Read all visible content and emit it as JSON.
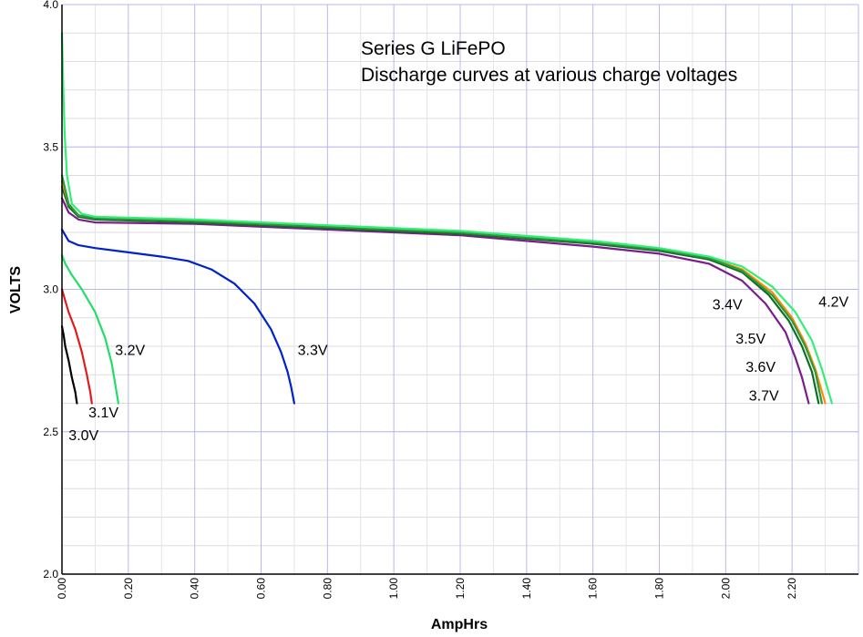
{
  "chart_data": {
    "type": "line",
    "title": "Series G LiFePO",
    "subtitle": "Discharge curves at various charge voltages",
    "xlabel": "AmpHrs",
    "ylabel": "VOLTS",
    "xlim": [
      0,
      2.4
    ],
    "ylim": [
      2.0,
      4.0
    ],
    "x_ticks": [
      "0.00",
      "0.20",
      "0.40",
      "0.60",
      "0.80",
      "1.00",
      "1.20",
      "1.40",
      "1.60",
      "1.80",
      "2.00",
      "2.20"
    ],
    "y_ticks": [
      "2.0",
      "2.5",
      "3.0",
      "3.5",
      "4.0"
    ],
    "grid": true,
    "series": [
      {
        "name": "3.0V",
        "color": "#000000",
        "points": [
          [
            0.0,
            2.87
          ],
          [
            0.005,
            2.84
          ],
          [
            0.01,
            2.8
          ],
          [
            0.02,
            2.75
          ],
          [
            0.03,
            2.69
          ],
          [
            0.04,
            2.64
          ],
          [
            0.045,
            2.6
          ]
        ]
      },
      {
        "name": "3.1V",
        "color": "#e31a1c",
        "points": [
          [
            0.0,
            3.0
          ],
          [
            0.01,
            2.96
          ],
          [
            0.02,
            2.92
          ],
          [
            0.04,
            2.86
          ],
          [
            0.06,
            2.78
          ],
          [
            0.075,
            2.7
          ],
          [
            0.085,
            2.64
          ],
          [
            0.09,
            2.6
          ]
        ]
      },
      {
        "name": "3.2V",
        "color": "#22dd66",
        "points": [
          [
            0.0,
            3.12
          ],
          [
            0.01,
            3.09
          ],
          [
            0.03,
            3.05
          ],
          [
            0.06,
            3.0
          ],
          [
            0.1,
            2.92
          ],
          [
            0.13,
            2.83
          ],
          [
            0.15,
            2.74
          ],
          [
            0.16,
            2.67
          ],
          [
            0.17,
            2.6
          ]
        ]
      },
      {
        "name": "3.3V",
        "color": "#0022cc",
        "points": [
          [
            0.0,
            3.21
          ],
          [
            0.02,
            3.17
          ],
          [
            0.05,
            3.155
          ],
          [
            0.1,
            3.145
          ],
          [
            0.2,
            3.13
          ],
          [
            0.3,
            3.115
          ],
          [
            0.38,
            3.1
          ],
          [
            0.45,
            3.07
          ],
          [
            0.52,
            3.02
          ],
          [
            0.58,
            2.95
          ],
          [
            0.63,
            2.86
          ],
          [
            0.66,
            2.78
          ],
          [
            0.68,
            2.71
          ],
          [
            0.69,
            2.66
          ],
          [
            0.7,
            2.6
          ]
        ]
      },
      {
        "name": "3.4V",
        "color": "#7b1b8c",
        "points": [
          [
            0.0,
            3.32
          ],
          [
            0.02,
            3.27
          ],
          [
            0.05,
            3.245
          ],
          [
            0.1,
            3.235
          ],
          [
            0.4,
            3.23
          ],
          [
            0.8,
            3.21
          ],
          [
            1.2,
            3.19
          ],
          [
            1.6,
            3.15
          ],
          [
            1.8,
            3.125
          ],
          [
            1.95,
            3.09
          ],
          [
            2.05,
            3.03
          ],
          [
            2.12,
            2.95
          ],
          [
            2.18,
            2.85
          ],
          [
            2.21,
            2.76
          ],
          [
            2.23,
            2.69
          ],
          [
            2.25,
            2.6
          ]
        ]
      },
      {
        "name": "3.5V",
        "color": "#0d6e2a",
        "points": [
          [
            0.0,
            3.36
          ],
          [
            0.02,
            3.29
          ],
          [
            0.05,
            3.255
          ],
          [
            0.1,
            3.245
          ],
          [
            0.4,
            3.235
          ],
          [
            0.8,
            3.215
          ],
          [
            1.2,
            3.195
          ],
          [
            1.6,
            3.16
          ],
          [
            1.8,
            3.135
          ],
          [
            1.95,
            3.105
          ],
          [
            2.05,
            3.06
          ],
          [
            2.13,
            2.98
          ],
          [
            2.19,
            2.89
          ],
          [
            2.23,
            2.8
          ],
          [
            2.26,
            2.71
          ],
          [
            2.28,
            2.6
          ]
        ]
      },
      {
        "name": "3.6V",
        "color": "#ff8c00",
        "points": [
          [
            0.0,
            3.38
          ],
          [
            0.02,
            3.3
          ],
          [
            0.05,
            3.26
          ],
          [
            0.1,
            3.25
          ],
          [
            0.4,
            3.24
          ],
          [
            0.8,
            3.22
          ],
          [
            1.2,
            3.2
          ],
          [
            1.6,
            3.165
          ],
          [
            1.8,
            3.14
          ],
          [
            1.95,
            3.11
          ],
          [
            2.05,
            3.07
          ],
          [
            2.14,
            2.99
          ],
          [
            2.2,
            2.9
          ],
          [
            2.24,
            2.81
          ],
          [
            2.27,
            2.72
          ],
          [
            2.3,
            2.6
          ]
        ]
      },
      {
        "name": "3.7V",
        "color": "#2a9a3a",
        "points": [
          [
            0.0,
            3.4
          ],
          [
            0.02,
            3.3
          ],
          [
            0.05,
            3.26
          ],
          [
            0.1,
            3.25
          ],
          [
            0.4,
            3.24
          ],
          [
            0.8,
            3.22
          ],
          [
            1.2,
            3.2
          ],
          [
            1.6,
            3.165
          ],
          [
            1.8,
            3.14
          ],
          [
            1.95,
            3.11
          ],
          [
            2.05,
            3.065
          ],
          [
            2.14,
            2.98
          ],
          [
            2.2,
            2.89
          ],
          [
            2.24,
            2.8
          ],
          [
            2.27,
            2.71
          ],
          [
            2.29,
            2.6
          ]
        ]
      },
      {
        "name": "4.2V",
        "color": "#33ee77",
        "points": [
          [
            0.0,
            3.9
          ],
          [
            0.003,
            3.75
          ],
          [
            0.008,
            3.55
          ],
          [
            0.015,
            3.4
          ],
          [
            0.03,
            3.3
          ],
          [
            0.06,
            3.265
          ],
          [
            0.1,
            3.255
          ],
          [
            0.4,
            3.245
          ],
          [
            0.8,
            3.225
          ],
          [
            1.2,
            3.205
          ],
          [
            1.6,
            3.17
          ],
          [
            1.8,
            3.145
          ],
          [
            1.95,
            3.115
          ],
          [
            2.05,
            3.08
          ],
          [
            2.14,
            3.01
          ],
          [
            2.21,
            2.92
          ],
          [
            2.26,
            2.82
          ],
          [
            2.29,
            2.72
          ],
          [
            2.32,
            2.6
          ]
        ]
      }
    ],
    "annotations": [
      {
        "text": "3.0V",
        "x": 0.02,
        "y": 2.47
      },
      {
        "text": "3.1V",
        "x": 0.08,
        "y": 2.55
      },
      {
        "text": "3.2V",
        "x": 0.16,
        "y": 2.77
      },
      {
        "text": "3.3V",
        "x": 0.71,
        "y": 2.77
      },
      {
        "text": "3.4V",
        "x": 1.96,
        "y": 2.93
      },
      {
        "text": "3.5V",
        "x": 2.03,
        "y": 2.81
      },
      {
        "text": "3.6V",
        "x": 2.06,
        "y": 2.71
      },
      {
        "text": "3.7V",
        "x": 2.07,
        "y": 2.61
      },
      {
        "text": "4.2V",
        "x": 2.28,
        "y": 2.94
      }
    ]
  }
}
